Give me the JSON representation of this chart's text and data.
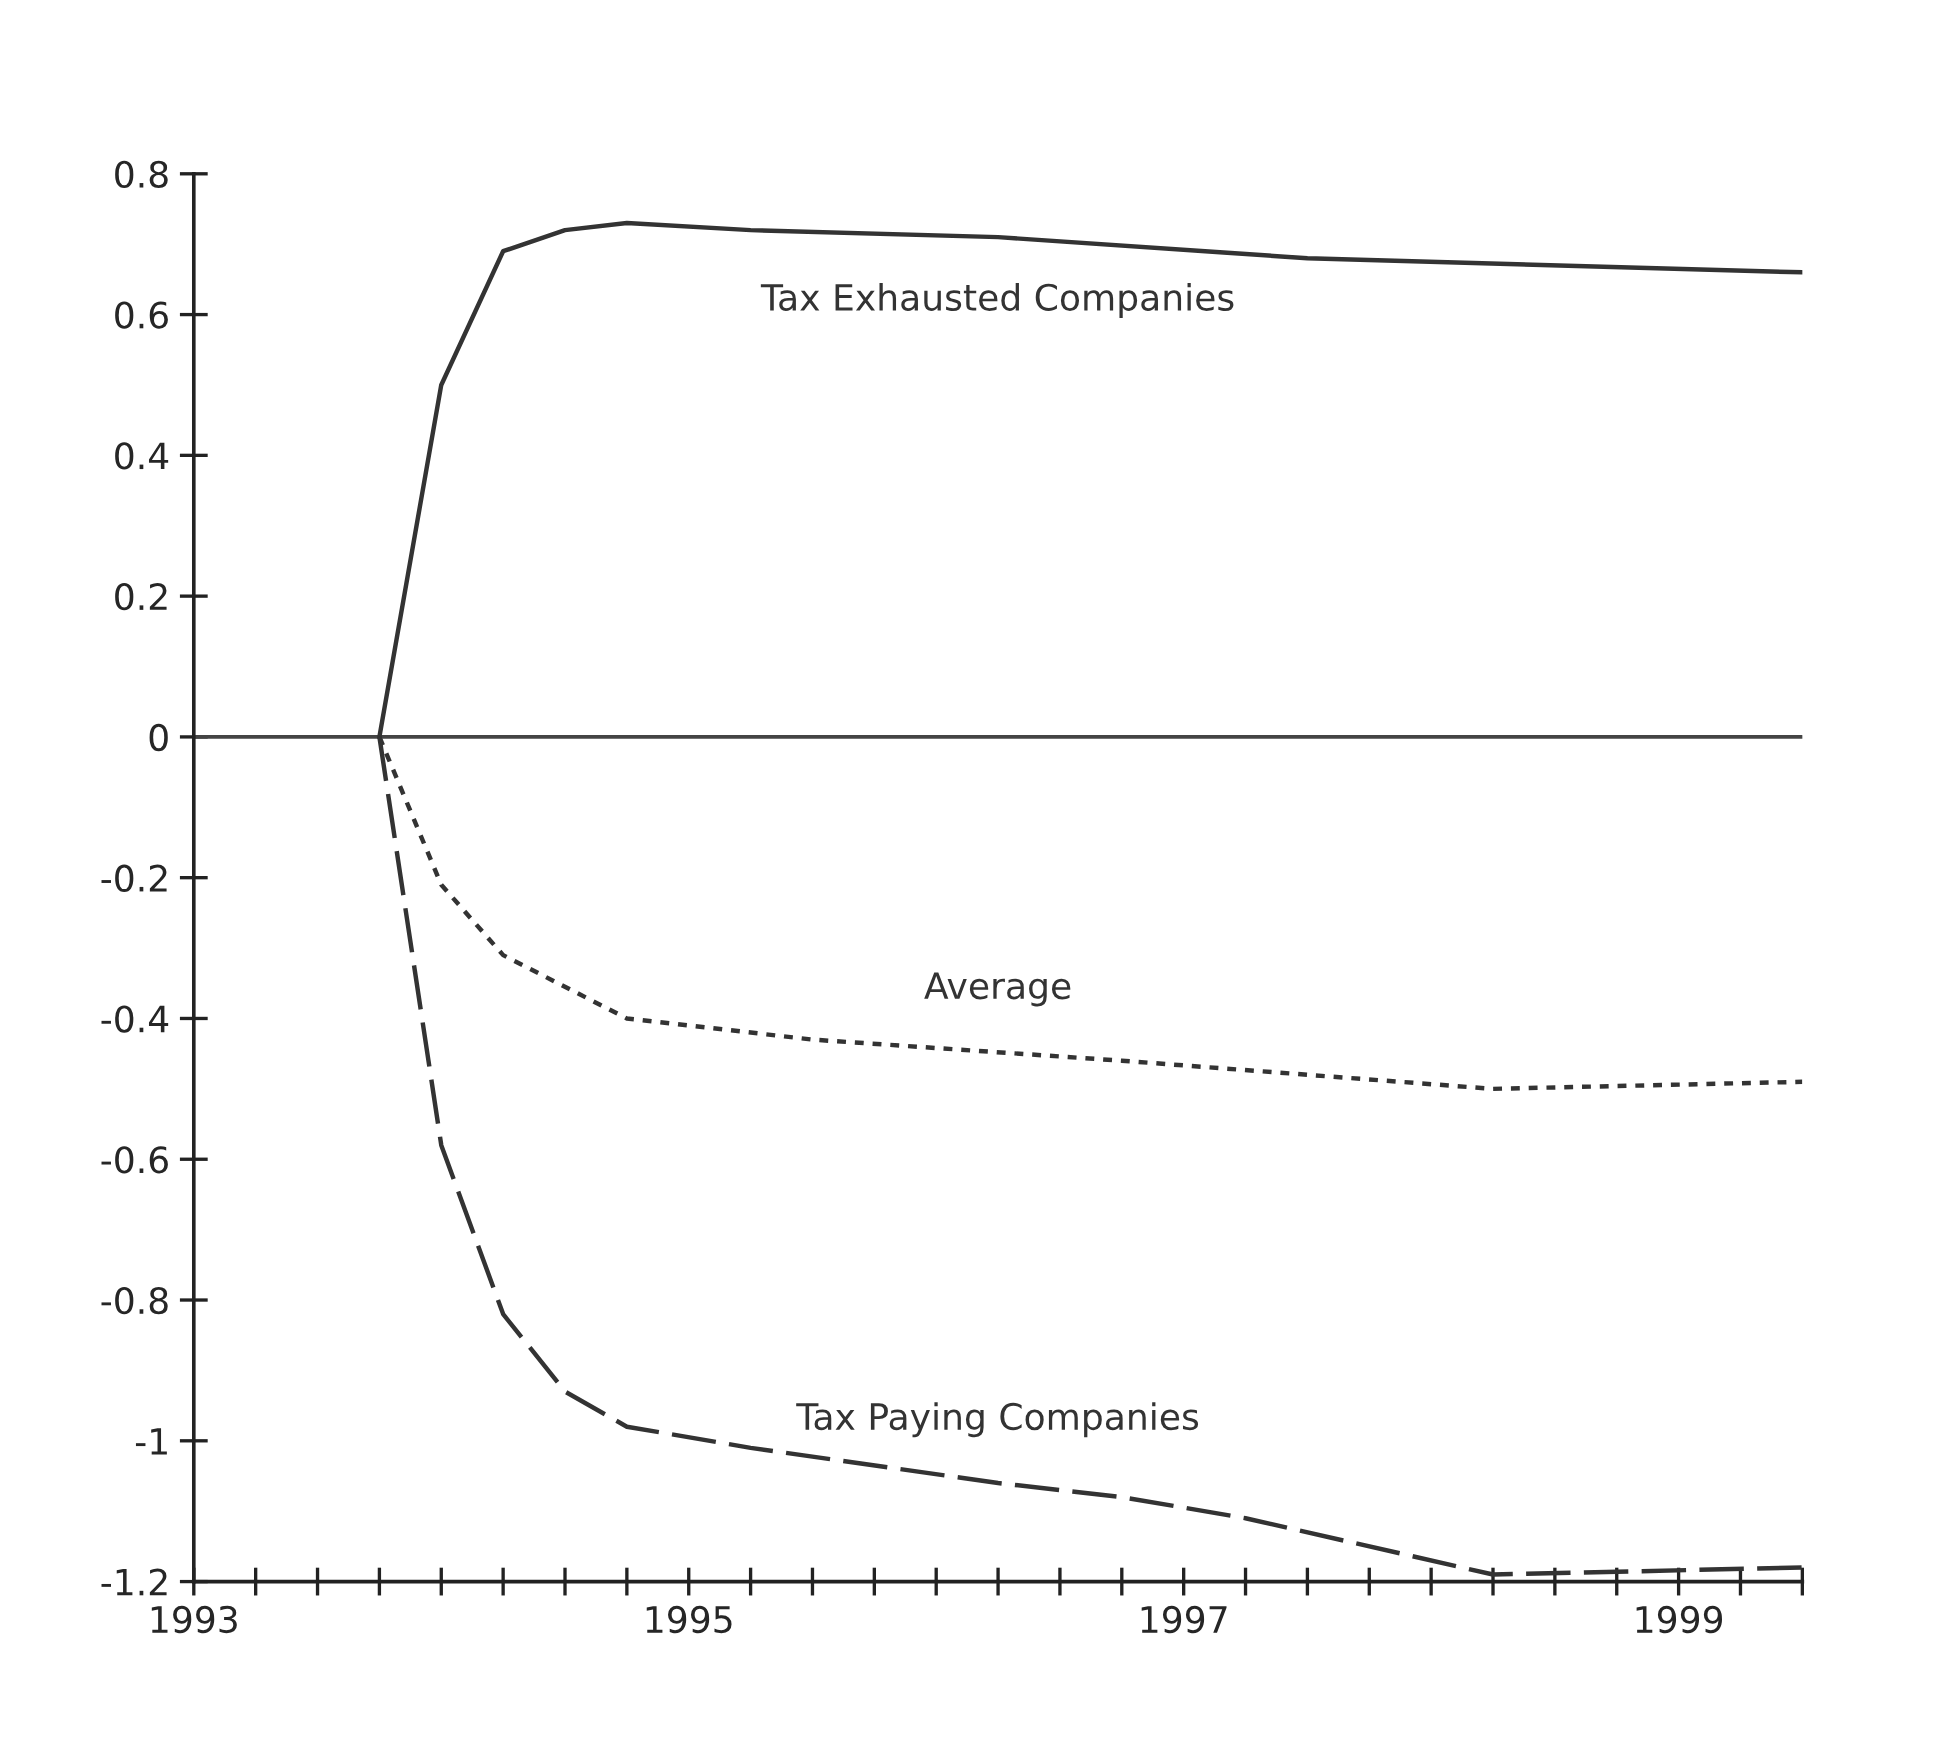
{
  "chart_data": {
    "type": "line",
    "series": [
      {
        "name": "Tax Exhausted Companies",
        "color": "#333333",
        "line_style": "solid",
        "x": [
          1993.75,
          1994.0,
          1994.25,
          1994.5,
          1994.75,
          1995.25,
          1996.25,
          1997.5,
          1999.5
        ],
        "values": [
          0,
          0.5,
          0.69,
          0.72,
          0.73,
          0.72,
          0.71,
          0.68,
          0.66
        ]
      },
      {
        "name": "Average",
        "color": "#333333",
        "line_style": "dotted",
        "x": [
          1993.75,
          1994.0,
          1994.25,
          1994.75,
          1995.5,
          1996.75,
          1998.25,
          1999.5
        ],
        "values": [
          0,
          -0.21,
          -0.31,
          -0.4,
          -0.43,
          -0.46,
          -0.5,
          -0.49
        ]
      },
      {
        "name": "Tax Paying Companies",
        "color": "#333333",
        "line_style": "dashed",
        "x": [
          1993.75,
          1994.0,
          1994.25,
          1994.5,
          1994.75,
          1995.25,
          1996.25,
          1996.75,
          1997.25,
          1998.25,
          1999.5
        ],
        "values": [
          0,
          -0.58,
          -0.82,
          -0.93,
          -0.98,
          -1.01,
          -1.06,
          -1.08,
          -1.11,
          -1.19,
          -1.18
        ]
      }
    ],
    "xlim": [
      1993,
      1999.5
    ],
    "xticks": [
      1993,
      {
        "value": 1993.25,
        "label": null
      },
      {
        "value": 1993.5,
        "label": null
      },
      {
        "value": 1993.75,
        "label": null
      },
      {
        "value": 1994,
        "label": null
      },
      {
        "value": 1994.25,
        "label": null
      },
      {
        "value": 1994.5,
        "label": null
      },
      {
        "value": 1994.75,
        "label": null
      },
      1995,
      {
        "value": 1995.25,
        "label": null
      },
      {
        "value": 1995.5,
        "label": null
      },
      {
        "value": 1995.75,
        "label": null
      },
      {
        "value": 1996,
        "label": null
      },
      {
        "value": 1996.25,
        "label": null
      },
      {
        "value": 1996.5,
        "label": null
      },
      {
        "value": 1996.75,
        "label": null
      },
      1997,
      {
        "value": 1997.25,
        "label": null
      },
      {
        "value": 1997.5,
        "label": null
      },
      {
        "value": 1997.75,
        "label": null
      },
      {
        "value": 1998,
        "label": null
      },
      {
        "value": 1998.25,
        "label": null
      },
      {
        "value": 1998.5,
        "label": null
      },
      {
        "value": 1998.75,
        "label": null
      },
      1999,
      {
        "value": 1999.25,
        "label": null
      },
      {
        "value": 1999.5,
        "label": null
      }
    ],
    "ylim": [
      -1.2,
      0.8
    ],
    "yticks": [
      -1.2,
      -1,
      -0.8,
      -0.6,
      -0.4,
      -0.2,
      0,
      0.2,
      0.4,
      0.6,
      0.8
    ],
    "ref_lines": [
      {
        "axis": "y",
        "value": 0,
        "label": null,
        "color": "#444444"
      }
    ],
    "grid": false,
    "legend": false
  }
}
